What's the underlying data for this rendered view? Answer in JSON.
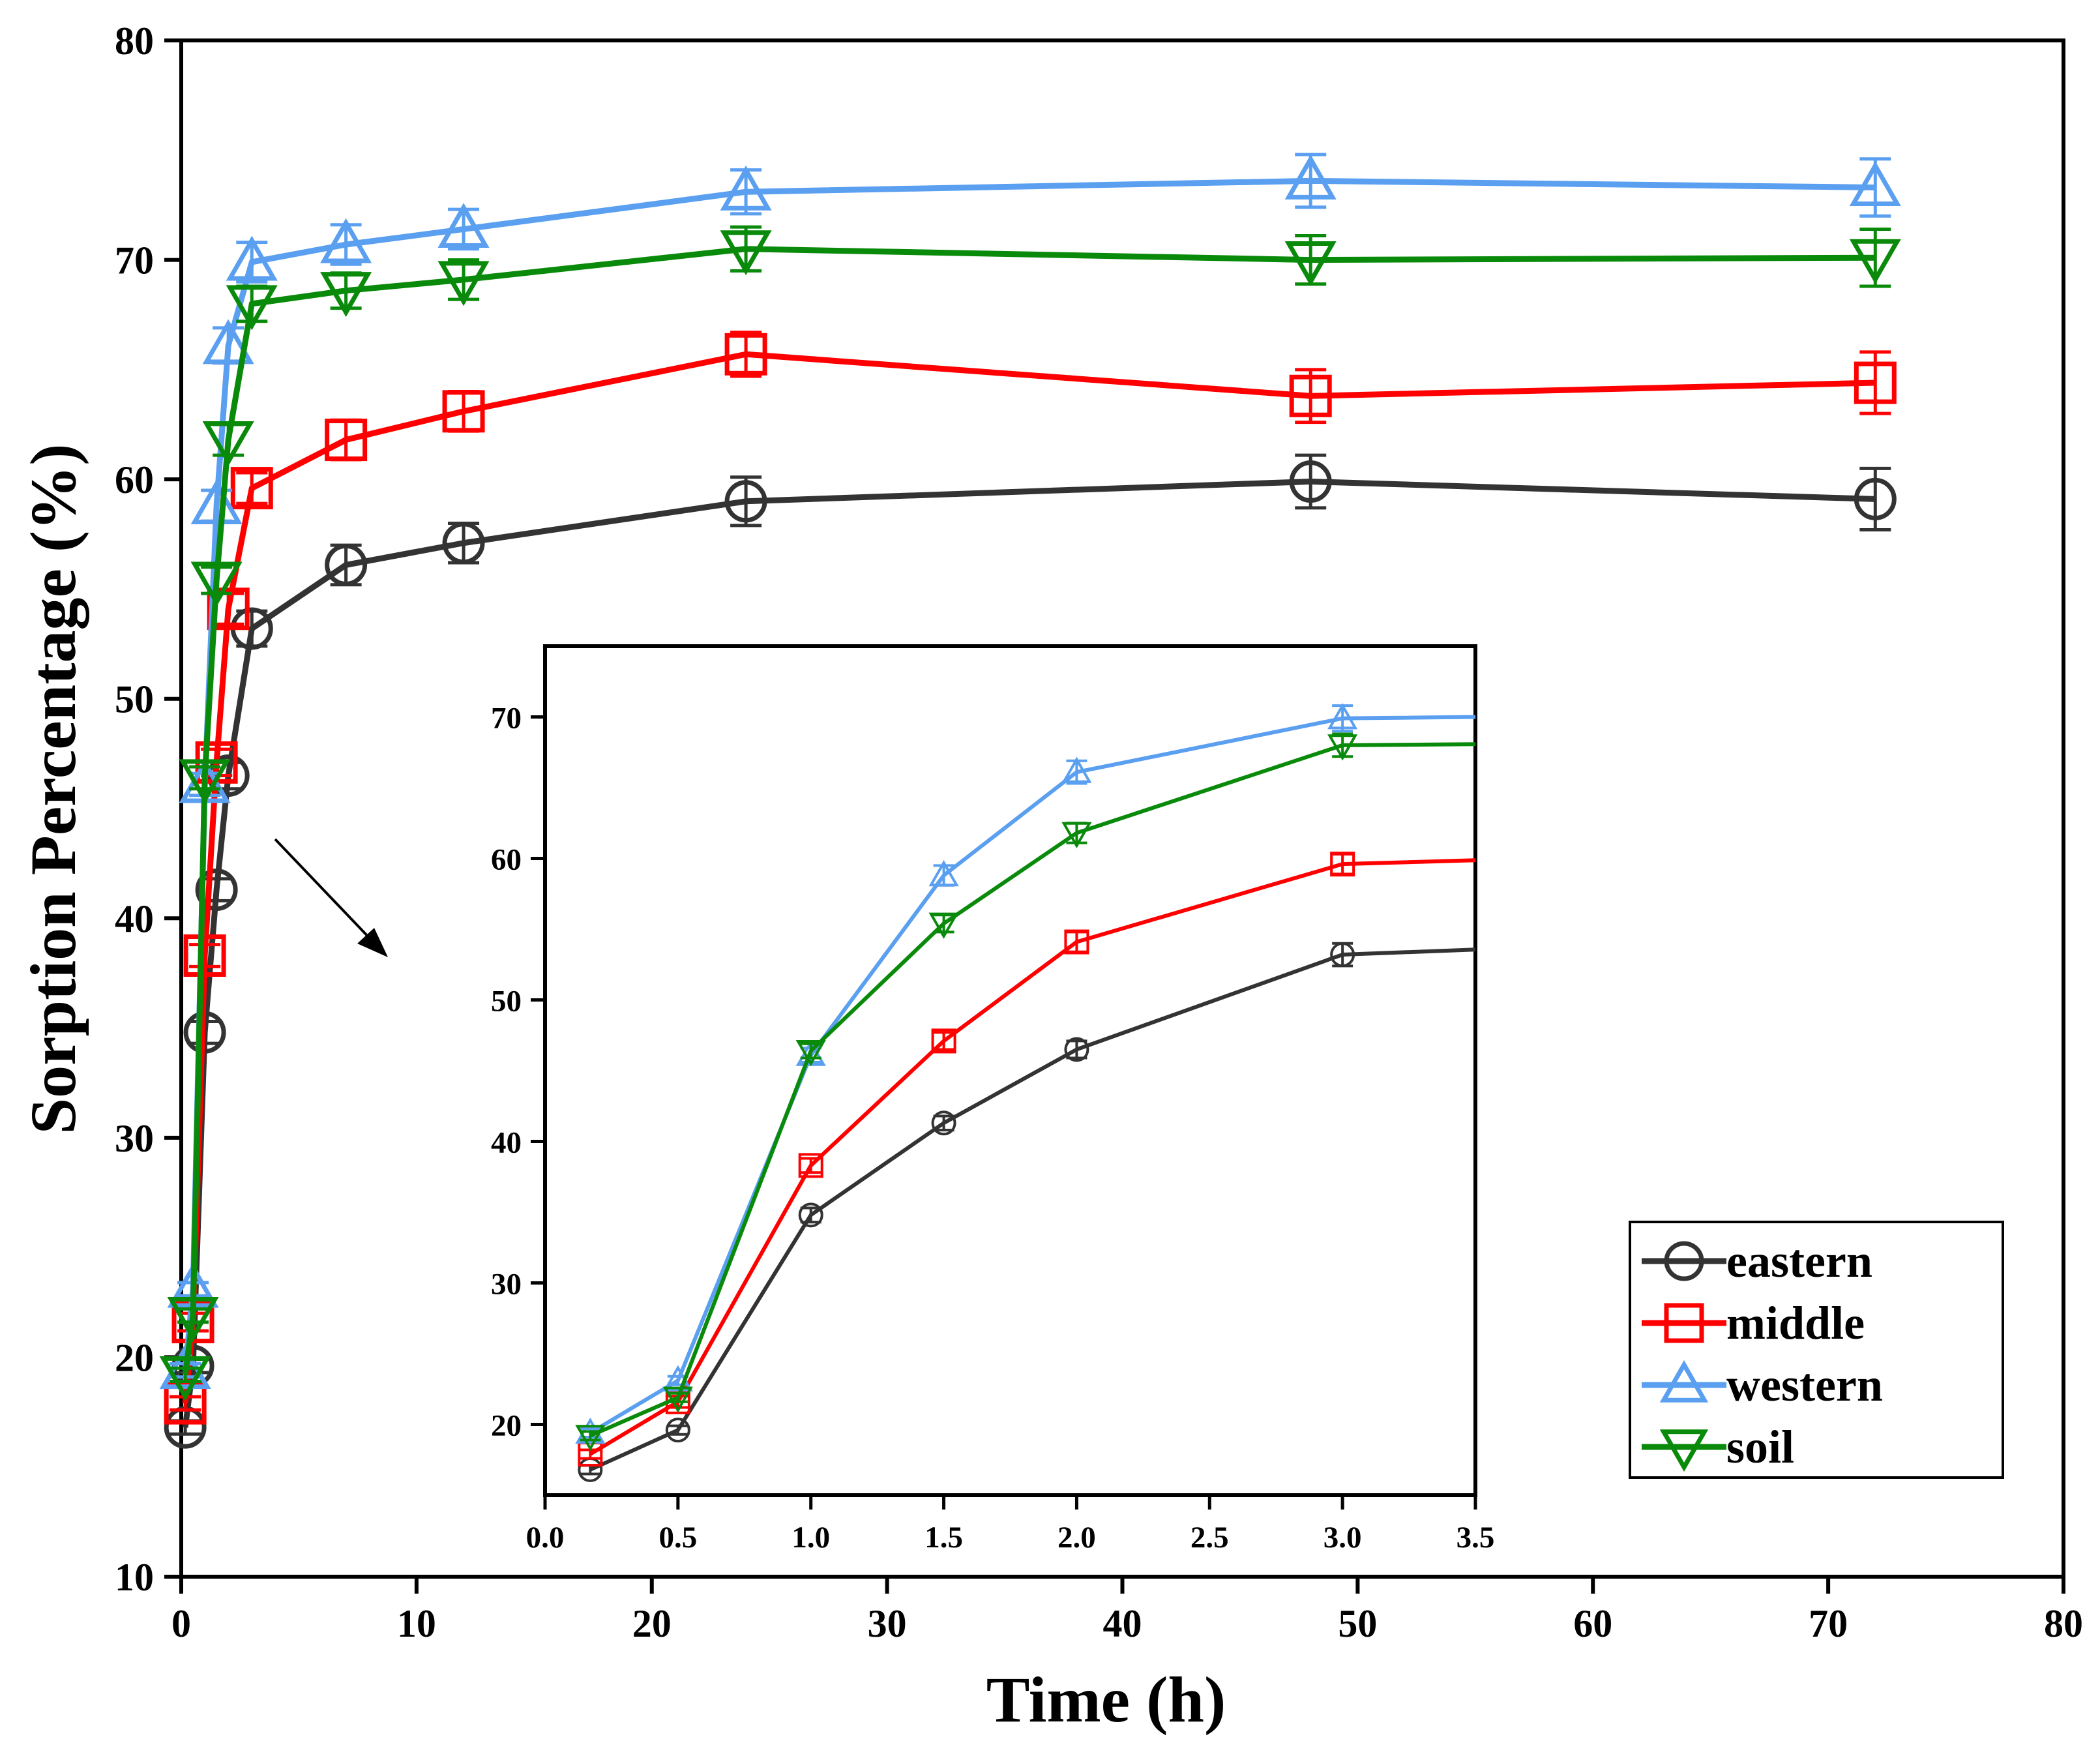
{
  "chart_data": {
    "type": "line",
    "xlabel": "Time (h)",
    "ylabel": "Sorption Percentage (%)",
    "xlim": [
      0,
      80
    ],
    "ylim": [
      10,
      80
    ],
    "xticks": [
      "0",
      "10",
      "20",
      "30",
      "40",
      "50",
      "60",
      "70",
      "80"
    ],
    "yticks": [
      "10",
      "20",
      "30",
      "40",
      "50",
      "60",
      "70",
      "80"
    ],
    "grid": false,
    "legend_position": "bottom-right",
    "series": [
      {
        "name": "eastern",
        "color": "#333333",
        "marker": "circle",
        "x": [
          0.17,
          0.5,
          1,
          1.5,
          2,
          3,
          7,
          12,
          24,
          48,
          72
        ],
        "y": [
          16.8,
          19.6,
          34.8,
          41.3,
          46.5,
          53.2,
          56.1,
          57.1,
          59.0,
          59.9,
          59.1
        ],
        "err": [
          0.3,
          0.3,
          0.5,
          0.5,
          0.6,
          0.8,
          0.9,
          0.9,
          1.1,
          1.2,
          1.4
        ]
      },
      {
        "name": "middle",
        "color": "#ff0000",
        "marker": "square",
        "x": [
          0.17,
          0.5,
          1,
          1.5,
          2,
          3,
          7,
          12,
          24,
          48,
          72
        ],
        "y": [
          17.9,
          21.6,
          38.3,
          47.1,
          54.1,
          59.6,
          61.8,
          63.1,
          65.7,
          63.8,
          64.4
        ],
        "err": [
          0.3,
          0.4,
          0.5,
          0.6,
          0.7,
          0.7,
          0.9,
          0.9,
          1.0,
          1.2,
          1.4
        ]
      },
      {
        "name": "western",
        "color": "#5a9ff0",
        "marker": "triangle-up",
        "x": [
          0.17,
          0.5,
          1,
          1.5,
          2,
          3,
          7,
          12,
          24,
          48,
          72
        ],
        "y": [
          19.4,
          23.1,
          46.1,
          58.8,
          66.1,
          69.9,
          70.7,
          71.4,
          73.1,
          73.6,
          73.3
        ],
        "err": [
          0.3,
          0.3,
          0.5,
          0.7,
          0.8,
          0.9,
          0.9,
          0.9,
          1.0,
          1.2,
          1.3
        ]
      },
      {
        "name": "soil",
        "color": "#0a8a0a",
        "marker": "triangle-down",
        "x": [
          0.17,
          0.5,
          1,
          1.5,
          2,
          3,
          7,
          12,
          24,
          48,
          72
        ],
        "y": [
          19.2,
          21.9,
          46.4,
          55.4,
          61.8,
          68.0,
          68.6,
          69.1,
          70.5,
          70.0,
          70.1
        ],
        "err": [
          0.3,
          0.3,
          0.5,
          0.6,
          0.7,
          0.8,
          0.8,
          0.9,
          1.0,
          1.1,
          1.3
        ]
      }
    ],
    "inset": {
      "xlim": [
        0,
        3.5
      ],
      "ylim": [
        15,
        75
      ],
      "xticks": [
        "0.0",
        "0.5",
        "1.0",
        "1.5",
        "2.0",
        "2.5",
        "3.0",
        "3.5"
      ],
      "yticks": [
        "20",
        "30",
        "40",
        "50",
        "60",
        "70"
      ]
    }
  }
}
